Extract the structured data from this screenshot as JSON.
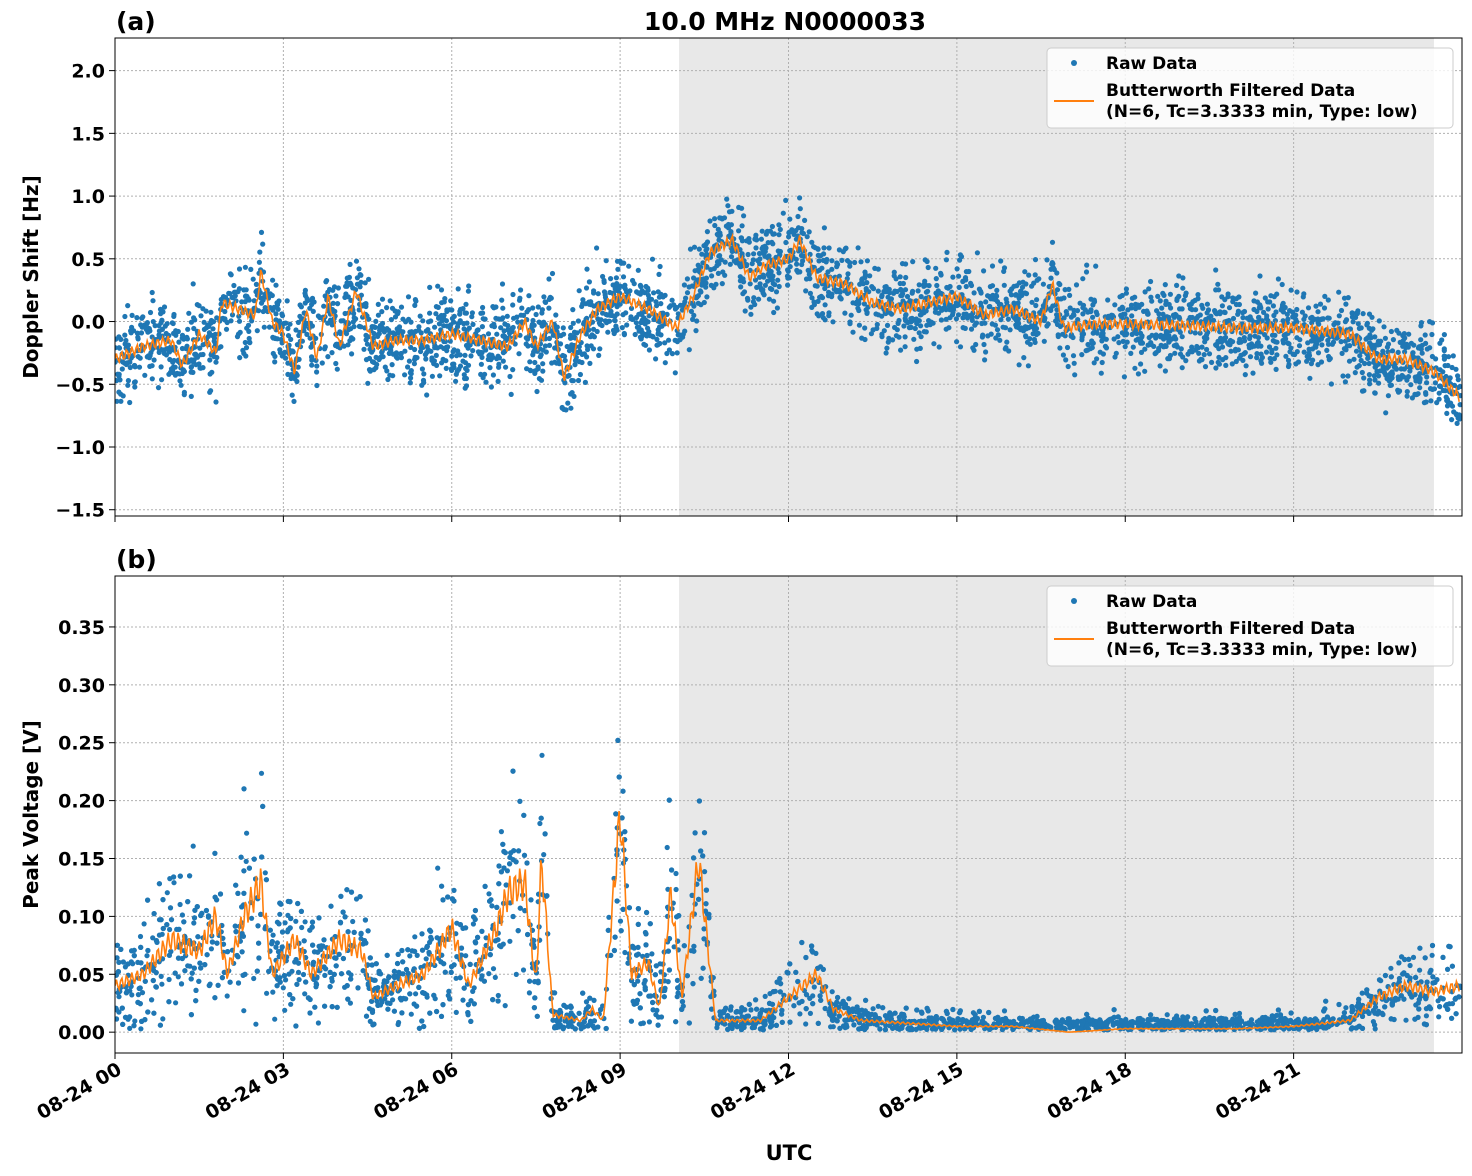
{
  "chart_data": {
    "title": "10.0 MHz N0000033",
    "xlabel": "UTC",
    "x_tick_labels": [
      "08-24 00",
      "08-24 03",
      "08-24 06",
      "08-24 09",
      "08-24 12",
      "08-24 15",
      "08-24 18",
      "08-24 21"
    ],
    "x_ticks_hours": [
      0,
      3,
      6,
      9,
      12,
      15,
      18,
      21
    ],
    "xlim_hours": [
      0,
      24
    ],
    "shaded_interval_hours": [
      10.05,
      23.5
    ],
    "shade_color": "#e8e8e8",
    "grid": true,
    "legend_placement": "top-right",
    "colors": {
      "raw": "#1f77b4",
      "filtered": "#ff7f0e"
    },
    "panels": [
      {
        "label": "(a)",
        "type": "scatter+line",
        "ylabel": "Doppler Shift [Hz]",
        "ylim": [
          -1.55,
          2.26
        ],
        "yticks": [
          -1.5,
          -1.0,
          -0.5,
          0.0,
          0.5,
          1.0,
          1.5,
          2.0
        ],
        "ytick_labels": [
          "−1.5",
          "−1.0",
          "−0.5",
          "0.0",
          "0.5",
          "1.0",
          "1.5",
          "2.0"
        ],
        "legend": [
          "Raw Data",
          "Butterworth Filtered Data",
          "(N=6, Tc=3.3333 min, Type: low)"
        ],
        "raw_spread": 0.17,
        "filtered": [
          [
            0,
            -0.3
          ],
          [
            0.5,
            -0.2
          ],
          [
            1,
            -0.15
          ],
          [
            1.2,
            -0.35
          ],
          [
            1.5,
            -0.1
          ],
          [
            1.8,
            -0.25
          ],
          [
            1.9,
            0.15
          ],
          [
            2.2,
            0.1
          ],
          [
            2.5,
            0.05
          ],
          [
            2.6,
            0.4
          ],
          [
            2.8,
            0.0
          ],
          [
            3.0,
            -0.1
          ],
          [
            3.2,
            -0.4
          ],
          [
            3.4,
            0.1
          ],
          [
            3.6,
            -0.3
          ],
          [
            3.8,
            0.2
          ],
          [
            4.0,
            -0.2
          ],
          [
            4.3,
            0.25
          ],
          [
            4.6,
            -0.2
          ],
          [
            5,
            -0.15
          ],
          [
            5.5,
            -0.15
          ],
          [
            6,
            -0.1
          ],
          [
            6.5,
            -0.15
          ],
          [
            7,
            -0.2
          ],
          [
            7.3,
            0.0
          ],
          [
            7.5,
            -0.2
          ],
          [
            7.8,
            0.0
          ],
          [
            8.0,
            -0.45
          ],
          [
            8.3,
            -0.1
          ],
          [
            8.6,
            0.1
          ],
          [
            9.0,
            0.2
          ],
          [
            9.5,
            0.1
          ],
          [
            10,
            -0.05
          ],
          [
            10.3,
            0.2
          ],
          [
            10.6,
            0.55
          ],
          [
            11,
            0.65
          ],
          [
            11.3,
            0.35
          ],
          [
            11.6,
            0.45
          ],
          [
            12,
            0.5
          ],
          [
            12.2,
            0.65
          ],
          [
            12.5,
            0.35
          ],
          [
            13,
            0.3
          ],
          [
            13.5,
            0.15
          ],
          [
            14,
            0.1
          ],
          [
            14.5,
            0.15
          ],
          [
            15,
            0.2
          ],
          [
            15.5,
            0.05
          ],
          [
            16,
            0.1
          ],
          [
            16.5,
            0.0
          ],
          [
            16.7,
            0.3
          ],
          [
            16.9,
            -0.05
          ],
          [
            17.5,
            -0.02
          ],
          [
            18,
            -0.02
          ],
          [
            19,
            -0.03
          ],
          [
            20,
            -0.05
          ],
          [
            21,
            -0.05
          ],
          [
            22,
            -0.1
          ],
          [
            22.5,
            -0.3
          ],
          [
            23,
            -0.3
          ],
          [
            23.5,
            -0.4
          ],
          [
            23.95,
            -0.6
          ]
        ]
      },
      {
        "label": "(b)",
        "type": "scatter+line",
        "ylabel": "Peak Voltage [V]",
        "ylim": [
          -0.018,
          0.394
        ],
        "yticks": [
          0,
          0.05,
          0.1,
          0.15,
          0.2,
          0.25,
          0.3,
          0.35
        ],
        "ytick_labels": [
          "0.00",
          "0.05",
          "0.10",
          "0.15",
          "0.20",
          "0.25",
          "0.30",
          "0.35"
        ],
        "legend": [
          "Raw Data",
          "Butterworth Filtered Data",
          "(N=6, Tc=3.3333 min, Type: low)"
        ],
        "raw_spread": 0.45,
        "filtered": [
          [
            0,
            0.04
          ],
          [
            0.5,
            0.05
          ],
          [
            1,
            0.08
          ],
          [
            1.5,
            0.07
          ],
          [
            1.8,
            0.1
          ],
          [
            2.0,
            0.05
          ],
          [
            2.3,
            0.1
          ],
          [
            2.6,
            0.13
          ],
          [
            2.8,
            0.05
          ],
          [
            3.2,
            0.08
          ],
          [
            3.5,
            0.05
          ],
          [
            4,
            0.08
          ],
          [
            4.4,
            0.07
          ],
          [
            4.6,
            0.03
          ],
          [
            5,
            0.04
          ],
          [
            5.5,
            0.05
          ],
          [
            6,
            0.09
          ],
          [
            6.3,
            0.04
          ],
          [
            6.8,
            0.09
          ],
          [
            7,
            0.12
          ],
          [
            7.3,
            0.13
          ],
          [
            7.5,
            0.04
          ],
          [
            7.6,
            0.15
          ],
          [
            7.8,
            0.015
          ],
          [
            8.3,
            0.01
          ],
          [
            8.5,
            0.02
          ],
          [
            8.7,
            0.01
          ],
          [
            9.0,
            0.19
          ],
          [
            9.2,
            0.05
          ],
          [
            9.5,
            0.06
          ],
          [
            9.7,
            0.02
          ],
          [
            9.9,
            0.12
          ],
          [
            10.1,
            0.03
          ],
          [
            10.4,
            0.15
          ],
          [
            10.7,
            0.01
          ],
          [
            11,
            0.01
          ],
          [
            11.5,
            0.01
          ],
          [
            12,
            0.03
          ],
          [
            12.5,
            0.05
          ],
          [
            12.8,
            0.02
          ],
          [
            13.3,
            0.01
          ],
          [
            14,
            0.008
          ],
          [
            15,
            0.005
          ],
          [
            16,
            0.005
          ],
          [
            17,
            0.0
          ],
          [
            18,
            0.003
          ],
          [
            19,
            0.003
          ],
          [
            20,
            0.003
          ],
          [
            21,
            0.005
          ],
          [
            22,
            0.01
          ],
          [
            22.5,
            0.03
          ],
          [
            23,
            0.04
          ],
          [
            23.5,
            0.035
          ],
          [
            23.95,
            0.04
          ]
        ]
      }
    ]
  }
}
